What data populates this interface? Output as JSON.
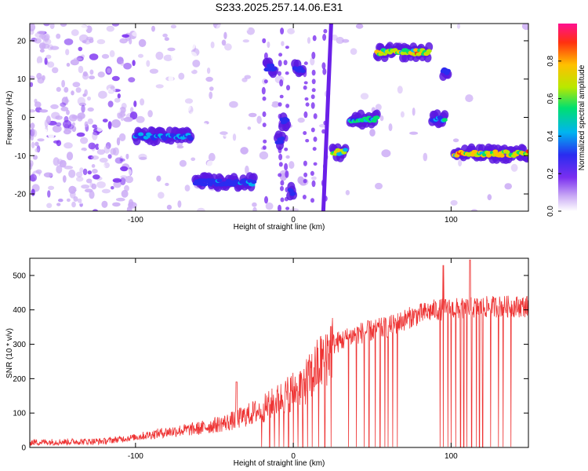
{
  "title": "S233.2025.257.14.06.E31",
  "colors": {
    "snr_line": "#ee3333",
    "scatter_bg": "#8a5cf0",
    "axis": "#000000"
  },
  "chart_data": [
    {
      "type": "heatmap",
      "xlabel": "Height of straight line (km)",
      "ylabel": "Frequency (Hz)",
      "xlim": [
        -167,
        149
      ],
      "ylim": [
        -24.5,
        24.5
      ],
      "xticks": [
        -100,
        0,
        100
      ],
      "yticks": [
        -20,
        -10,
        0,
        10,
        20
      ],
      "colorbar": {
        "label": "Normalized spectral amplitude",
        "range": [
          0,
          1
        ],
        "ticks": [
          "0.0",
          "0.2",
          "0.4",
          "0.6",
          "0.8"
        ],
        "tick_values": [
          0.0,
          0.2,
          0.4,
          0.6,
          0.8
        ]
      },
      "features": [
        {
          "x": [
            -100,
            -65
          ],
          "freq": -5,
          "amp": 0.45
        },
        {
          "x": [
            -62,
            -25
          ],
          "freq": -17,
          "amp": 0.4
        },
        {
          "x": [
            -17,
            -12
          ],
          "freq": 13,
          "amp": 0.35
        },
        {
          "x": [
            -10,
            -7
          ],
          "freq": -6,
          "amp": 0.3
        },
        {
          "x": [
            -7,
            -4
          ],
          "freq": -1,
          "amp": 0.25
        },
        {
          "x": [
            -2,
            0
          ],
          "freq": -19.5,
          "amp": 0.25
        },
        {
          "x": [
            1,
            6
          ],
          "freq": 12.5,
          "amp": 0.35
        },
        {
          "x": [
            25,
            33
          ],
          "freq": -9,
          "amp": 0.8
        },
        {
          "x": [
            36,
            53
          ],
          "freq": -0.5,
          "amp": 0.6
        },
        {
          "x": [
            53,
            86
          ],
          "freq": 17,
          "amp": 0.85
        },
        {
          "x": [
            88,
            96
          ],
          "freq": -0.5,
          "amp": 0.55
        },
        {
          "x": [
            95,
            98
          ],
          "freq": 12,
          "amp": 0.25
        },
        {
          "x": [
            102,
            149
          ],
          "freq": -9.5,
          "amp": 0.85
        }
      ]
    },
    {
      "type": "line",
      "xlabel": "Height of straight line (km)",
      "ylabel": "SNR (10 * v/v)",
      "xlim": [
        -167,
        149
      ],
      "ylim": [
        0,
        550
      ],
      "xticks": [
        -100,
        0,
        100
      ],
      "yticks": [
        0,
        100,
        200,
        300,
        400,
        500
      ],
      "trend": [
        {
          "x": -167,
          "y": 15
        },
        {
          "x": -120,
          "y": 18
        },
        {
          "x": -100,
          "y": 30
        },
        {
          "x": -80,
          "y": 45
        },
        {
          "x": -60,
          "y": 55
        },
        {
          "x": -40,
          "y": 75
        },
        {
          "x": -20,
          "y": 110
        },
        {
          "x": -5,
          "y": 150
        },
        {
          "x": 10,
          "y": 200
        },
        {
          "x": 25,
          "y": 300
        },
        {
          "x": 40,
          "y": 330
        },
        {
          "x": 60,
          "y": 350
        },
        {
          "x": 75,
          "y": 380
        },
        {
          "x": 90,
          "y": 400
        },
        {
          "x": 110,
          "y": 405
        },
        {
          "x": 130,
          "y": 410
        },
        {
          "x": 149,
          "y": 410
        }
      ],
      "dropouts": [
        -20,
        -15,
        -12,
        -9,
        -6,
        -3,
        0,
        3,
        6,
        9,
        12,
        16,
        20,
        24,
        35,
        40,
        45,
        48,
        52,
        55,
        58,
        60,
        63,
        66,
        93,
        95,
        98,
        100,
        103,
        106,
        108,
        110,
        113,
        116,
        118,
        120,
        125,
        130,
        133,
        138
      ]
    }
  ]
}
